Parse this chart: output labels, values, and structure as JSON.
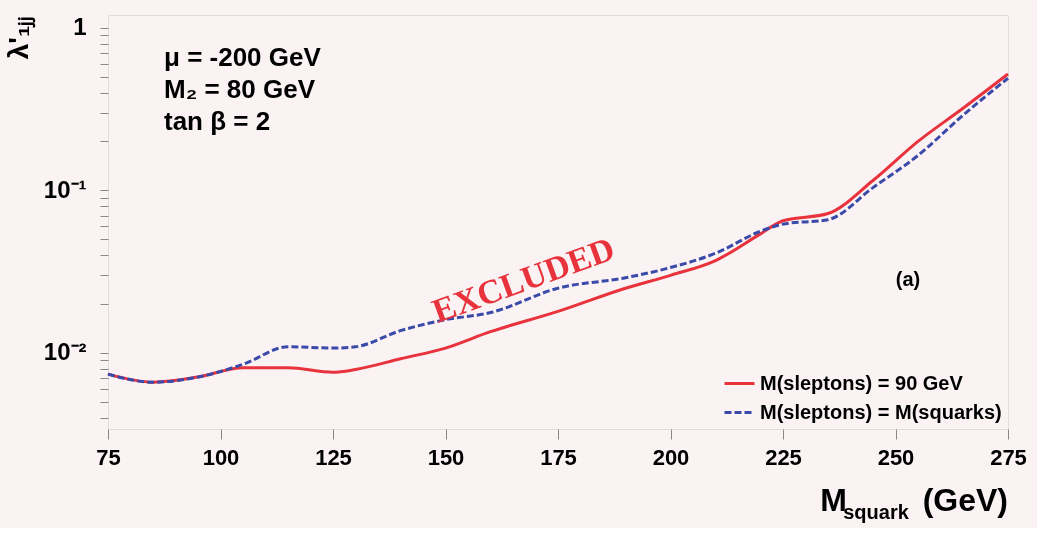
{
  "chart_data": {
    "type": "line",
    "xlabel": "M$_{squark}$ (GeV)",
    "ylabel": "λ'₁ⱼⱼ",
    "annotations": [
      "μ = -200 GeV",
      "M₂ = 80 GeV",
      "tan β = 2",
      "EXCLUDED",
      "(a)"
    ],
    "x": [
      75,
      85,
      95,
      105,
      115,
      125,
      130,
      140,
      150,
      160,
      175,
      190,
      200,
      210,
      220,
      225,
      235,
      245,
      255,
      265,
      275
    ],
    "series": [
      {
        "name": "M(sleptons) = 90 GeV",
        "color": "#e8323c",
        "line_style": "solid",
        "values": [
          0.0074,
          0.0066,
          0.0071,
          0.0081,
          0.0081,
          0.0076,
          0.0079,
          0.0092,
          0.0107,
          0.0135,
          0.018,
          0.025,
          0.03,
          0.037,
          0.054,
          0.065,
          0.072,
          0.115,
          0.2,
          0.32,
          0.52
        ]
      },
      {
        "name": "M(sleptons) = M(squarks)",
        "color": "#3a4aa8",
        "line_style": "dashed",
        "values": [
          0.0074,
          0.0066,
          0.0071,
          0.0085,
          0.0109,
          0.0107,
          0.0109,
          0.0137,
          0.016,
          0.0177,
          0.025,
          0.029,
          0.0335,
          0.041,
          0.056,
          0.062,
          0.066,
          0.104,
          0.164,
          0.29,
          0.49
        ]
      }
    ],
    "log": "y",
    "grid": false,
    "legend": "bottom right",
    "marker": "none",
    "xlim": [
      75,
      275
    ],
    "xticks": [
      75,
      100,
      125,
      150,
      175,
      200,
      225,
      250,
      275
    ],
    "ylim": [
      0.0034,
      1.2
    ],
    "yticks": [
      {
        "value": 0.004,
        "label": null
      },
      {
        "value": 0.005,
        "label": null
      },
      {
        "value": 0.006,
        "label": null
      },
      {
        "value": 0.007,
        "label": null
      },
      {
        "value": 0.008,
        "label": null
      },
      {
        "value": 0.009,
        "label": null
      },
      {
        "value": 0.01,
        "label": "10⁻²"
      },
      {
        "value": 0.02,
        "label": null
      },
      {
        "value": 0.03,
        "label": null
      },
      {
        "value": 0.04,
        "label": null
      },
      {
        "value": 0.05,
        "label": null
      },
      {
        "value": 0.06,
        "label": null
      },
      {
        "value": 0.07,
        "label": null
      },
      {
        "value": 0.08,
        "label": null
      },
      {
        "value": 0.09,
        "label": null
      },
      {
        "value": 0.1,
        "label": "10⁻¹"
      },
      {
        "value": 0.2,
        "label": null
      },
      {
        "value": 0.3,
        "label": null
      },
      {
        "value": 0.4,
        "label": null
      },
      {
        "value": 0.5,
        "label": null
      },
      {
        "value": 0.6,
        "label": null
      },
      {
        "value": 0.7,
        "label": null
      },
      {
        "value": 0.8,
        "label": null
      },
      {
        "value": 0.9,
        "label": null
      },
      {
        "value": 1,
        "label": "1"
      }
    ]
  }
}
